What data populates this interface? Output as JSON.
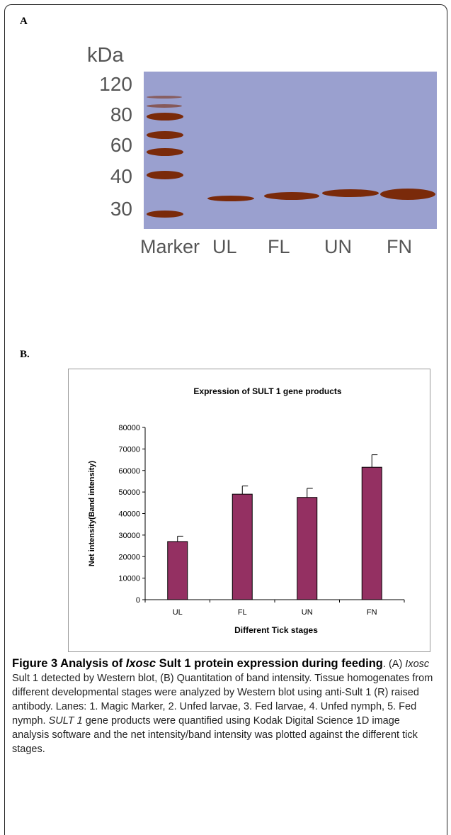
{
  "panel_a": {
    "label": "A",
    "kda_unit": "kDa",
    "mw_markers": [
      "120",
      "80",
      "60",
      "40",
      "30"
    ],
    "lanes": [
      "Marker",
      "UL",
      "FL",
      "UN",
      "FN"
    ],
    "colors": {
      "blot_background": "#9aa0cf",
      "band": "#7a2a0a"
    }
  },
  "panel_b": {
    "label": "B."
  },
  "chart_data": {
    "type": "bar",
    "title": "Expression of SULT 1 gene products",
    "xlabel": "Different Tick stages",
    "ylabel": "Net intensity(Band intensity)",
    "categories": [
      "UL",
      "FL",
      "UN",
      "FN"
    ],
    "values": [
      27000,
      49000,
      47500,
      61500
    ],
    "error_upper": [
      2500,
      3800,
      4200,
      5800
    ],
    "ylim": [
      0,
      80000
    ],
    "yticks": [
      "0",
      "10000",
      "20000",
      "30000",
      "40000",
      "50000",
      "60000",
      "70000",
      "80000"
    ],
    "grid": false,
    "legend": "none",
    "bar_color": "#943062"
  },
  "caption": {
    "fig_label": "Figure 3",
    "title_pre": "Analysis of ",
    "title_species": "Ixosc",
    "title_post": " Sult 1 protein expression during feeding",
    "body_1_species": "Ixosc",
    "body_1": " Sult 1 detected by Western blot, (B) Quantitation of band intensity. Tissue homogenates from different developmental stages were analyzed by Western blot using anti-Sult 1 (R) raised antibody. Lanes: 1. Magic Marker, 2. Unfed larvae, 3. Fed larvae, 4. Unfed nymph, 5. Fed nymph. ",
    "body_gene": "SULT 1",
    "body_2": " gene products were quantified using Kodak Digital Science 1D image analysis software and the net intensity/band intensity was plotted against the different tick stages.",
    "body_prefix": "(A) "
  }
}
